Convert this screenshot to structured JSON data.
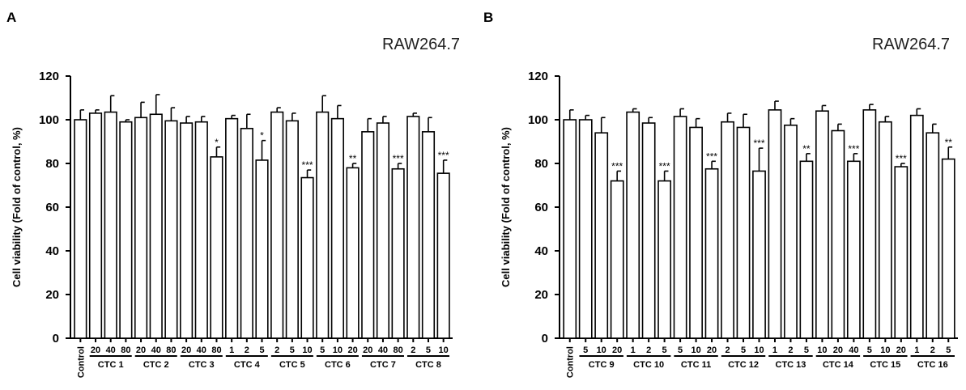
{
  "chart_data": [
    {
      "type": "bar",
      "panel_label": "A",
      "title": "RAW264.7",
      "ylabel": "Cell viability (Fold of control, %)",
      "ylim": [
        0,
        120
      ],
      "yticks": [
        0,
        20,
        40,
        60,
        80,
        100,
        120
      ],
      "groups": [
        {
          "label": "",
          "bars": [
            {
              "x": "Control",
              "value": 100,
              "err": 4.5,
              "sig": ""
            }
          ]
        },
        {
          "label": "CTC 1",
          "bars": [
            {
              "x": "20",
              "value": 103,
              "err": 1.5,
              "sig": ""
            },
            {
              "x": "40",
              "value": 103.5,
              "err": 7.5,
              "sig": ""
            },
            {
              "x": "80",
              "value": 99,
              "err": 1,
              "sig": ""
            }
          ]
        },
        {
          "label": "CTC 2",
          "bars": [
            {
              "x": "20",
              "value": 101,
              "err": 7,
              "sig": ""
            },
            {
              "x": "40",
              "value": 102.5,
              "err": 9,
              "sig": ""
            },
            {
              "x": "80",
              "value": 99.5,
              "err": 6,
              "sig": ""
            }
          ]
        },
        {
          "label": "CTC 3",
          "bars": [
            {
              "x": "20",
              "value": 98.5,
              "err": 3,
              "sig": ""
            },
            {
              "x": "40",
              "value": 99,
              "err": 2.5,
              "sig": ""
            },
            {
              "x": "80",
              "value": 83,
              "err": 4.5,
              "sig": "*"
            }
          ]
        },
        {
          "label": "CTC 4",
          "bars": [
            {
              "x": "1",
              "value": 100.5,
              "err": 1.5,
              "sig": ""
            },
            {
              "x": "2",
              "value": 96,
              "err": 6.5,
              "sig": ""
            },
            {
              "x": "5",
              "value": 81.5,
              "err": 9,
              "sig": "*"
            }
          ]
        },
        {
          "label": "CTC 5",
          "bars": [
            {
              "x": "2",
              "value": 103.5,
              "err": 2,
              "sig": ""
            },
            {
              "x": "5",
              "value": 99.5,
              "err": 3.5,
              "sig": ""
            },
            {
              "x": "10",
              "value": 73.5,
              "err": 3.5,
              "sig": "***"
            }
          ]
        },
        {
          "label": "CTC 6",
          "bars": [
            {
              "x": "5",
              "value": 103.5,
              "err": 7.5,
              "sig": ""
            },
            {
              "x": "10",
              "value": 100.5,
              "err": 6,
              "sig": ""
            },
            {
              "x": "20",
              "value": 78,
              "err": 2,
              "sig": "**"
            }
          ]
        },
        {
          "label": "CTC 7",
          "bars": [
            {
              "x": "20",
              "value": 94.5,
              "err": 6,
              "sig": ""
            },
            {
              "x": "40",
              "value": 98.5,
              "err": 3,
              "sig": ""
            },
            {
              "x": "80",
              "value": 77.5,
              "err": 2.5,
              "sig": "***"
            }
          ]
        },
        {
          "label": "CTC 8",
          "bars": [
            {
              "x": "2",
              "value": 101.5,
              "err": 1.5,
              "sig": ""
            },
            {
              "x": "5",
              "value": 94.5,
              "err": 6.5,
              "sig": ""
            },
            {
              "x": "10",
              "value": 75.5,
              "err": 6,
              "sig": "***"
            }
          ]
        }
      ]
    },
    {
      "type": "bar",
      "panel_label": "B",
      "title": "RAW264.7",
      "ylabel": "Cell viability (Fold of control, %)",
      "ylim": [
        0,
        120
      ],
      "yticks": [
        0,
        20,
        40,
        60,
        80,
        100,
        120
      ],
      "groups": [
        {
          "label": "",
          "bars": [
            {
              "x": "Control",
              "value": 100,
              "err": 4.5,
              "sig": ""
            }
          ]
        },
        {
          "label": "CTC 9",
          "bars": [
            {
              "x": "5",
              "value": 100,
              "err": 2,
              "sig": ""
            },
            {
              "x": "10",
              "value": 94,
              "err": 7,
              "sig": ""
            },
            {
              "x": "20",
              "value": 72,
              "err": 4.5,
              "sig": "***"
            }
          ]
        },
        {
          "label": "CTC 10",
          "bars": [
            {
              "x": "1",
              "value": 103.5,
              "err": 1.5,
              "sig": ""
            },
            {
              "x": "2",
              "value": 98.5,
              "err": 2.5,
              "sig": ""
            },
            {
              "x": "5",
              "value": 72,
              "err": 4.5,
              "sig": "***"
            }
          ]
        },
        {
          "label": "CTC 11",
          "bars": [
            {
              "x": "5",
              "value": 101.5,
              "err": 3.5,
              "sig": ""
            },
            {
              "x": "10",
              "value": 96.5,
              "err": 4,
              "sig": ""
            },
            {
              "x": "20",
              "value": 77.5,
              "err": 3.5,
              "sig": "***"
            }
          ]
        },
        {
          "label": "CTC 12",
          "bars": [
            {
              "x": "2",
              "value": 99,
              "err": 4,
              "sig": ""
            },
            {
              "x": "5",
              "value": 96.5,
              "err": 6,
              "sig": ""
            },
            {
              "x": "10",
              "value": 76.5,
              "err": 10.5,
              "sig": "***"
            }
          ]
        },
        {
          "label": "CTC 13",
          "bars": [
            {
              "x": "1",
              "value": 104.5,
              "err": 4,
              "sig": ""
            },
            {
              "x": "2",
              "value": 97.5,
              "err": 3,
              "sig": ""
            },
            {
              "x": "5",
              "value": 81,
              "err": 3.5,
              "sig": "**"
            }
          ]
        },
        {
          "label": "CTC 14",
          "bars": [
            {
              "x": "10",
              "value": 104,
              "err": 2.5,
              "sig": ""
            },
            {
              "x": "20",
              "value": 95,
              "err": 3,
              "sig": ""
            },
            {
              "x": "40",
              "value": 81,
              "err": 3.5,
              "sig": "***"
            }
          ]
        },
        {
          "label": "CTC 15",
          "bars": [
            {
              "x": "5",
              "value": 104.5,
              "err": 2.5,
              "sig": ""
            },
            {
              "x": "10",
              "value": 99,
              "err": 2.5,
              "sig": ""
            },
            {
              "x": "20",
              "value": 78.5,
              "err": 1.5,
              "sig": "***"
            }
          ]
        },
        {
          "label": "CTC 16",
          "bars": [
            {
              "x": "1",
              "value": 102,
              "err": 3,
              "sig": ""
            },
            {
              "x": "2",
              "value": 94,
              "err": 4,
              "sig": ""
            },
            {
              "x": "5",
              "value": 82,
              "err": 5.5,
              "sig": "**"
            }
          ]
        }
      ]
    }
  ]
}
